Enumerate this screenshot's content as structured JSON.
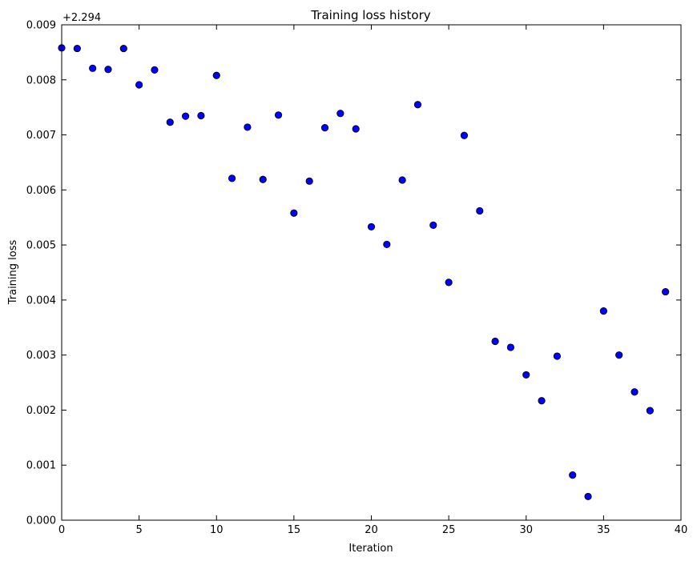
{
  "chart_data": {
    "type": "scatter",
    "title": "Training loss history",
    "xlabel": "Iteration",
    "ylabel": "Training loss",
    "offset_label": "+2.294",
    "xlim": [
      0,
      40
    ],
    "ylim": [
      0.0,
      0.009
    ],
    "x_ticks": [
      0,
      5,
      10,
      15,
      20,
      25,
      30,
      35,
      40
    ],
    "x_tick_labels": [
      "0",
      "5",
      "10",
      "15",
      "20",
      "25",
      "30",
      "35",
      "40"
    ],
    "y_ticks": [
      0.0,
      0.001,
      0.002,
      0.003,
      0.004,
      0.005,
      0.006,
      0.007,
      0.008,
      0.009
    ],
    "y_tick_labels": [
      "0.000",
      "0.001",
      "0.002",
      "0.003",
      "0.004",
      "0.005",
      "0.006",
      "0.007",
      "0.008",
      "0.009"
    ],
    "grid": false,
    "marker_color": "#0000ff",
    "x": [
      0,
      1,
      2,
      3,
      4,
      5,
      6,
      7,
      8,
      9,
      10,
      11,
      12,
      13,
      14,
      15,
      16,
      17,
      18,
      19,
      20,
      21,
      22,
      23,
      24,
      25,
      26,
      27,
      28,
      29,
      30,
      31,
      32,
      33,
      34,
      35,
      36,
      37,
      38,
      39
    ],
    "y": [
      0.00858,
      0.00857,
      0.00821,
      0.00819,
      0.00857,
      0.00791,
      0.00818,
      0.00723,
      0.00734,
      0.00735,
      0.00808,
      0.00621,
      0.00714,
      0.00619,
      0.00736,
      0.00558,
      0.00616,
      0.00713,
      0.00739,
      0.00711,
      0.00533,
      0.00501,
      0.00618,
      0.00755,
      0.00536,
      0.00432,
      0.00699,
      0.00562,
      0.00325,
      0.00314,
      0.00264,
      0.00217,
      0.00298,
      0.00082,
      0.00043,
      0.0038,
      0.003,
      0.00233,
      0.00199,
      0.00415
    ]
  }
}
